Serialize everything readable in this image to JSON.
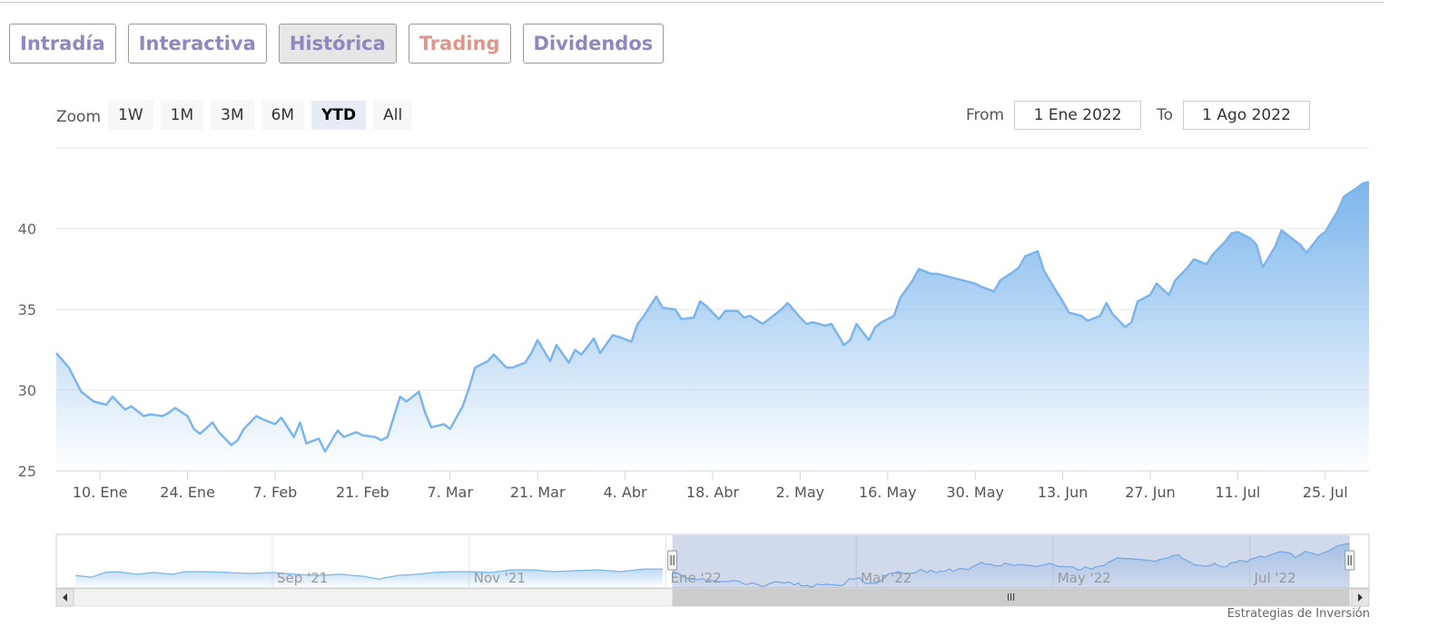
{
  "tabs": [
    "Intradía",
    "Interactiva",
    "Histórica",
    "Trading",
    "Dividendos"
  ],
  "zoom": {
    "label": "Zoom",
    "buttons": [
      "1W",
      "1M",
      "3M",
      "6M",
      "YTD",
      "All"
    ]
  },
  "range": {
    "from_label": "From",
    "from": "1 Ene 2022",
    "to_label": "To",
    "to": "1 Ago 2022"
  },
  "credit": "Estrategias de Inversión",
  "chart_data": [
    {
      "type": "area",
      "color": "#7cb5ec",
      "grid": true,
      "xlim": [
        3,
        213
      ],
      "ylim": [
        25,
        45
      ],
      "yticks": [
        25,
        30,
        35,
        40
      ],
      "xticks": [
        {
          "value": 10,
          "label": "10. Ene"
        },
        {
          "value": 24,
          "label": "24. Ene"
        },
        {
          "value": 38,
          "label": "7. Feb"
        },
        {
          "value": 52,
          "label": "21. Feb"
        },
        {
          "value": 66,
          "label": "7. Mar"
        },
        {
          "value": 80,
          "label": "21. Mar"
        },
        {
          "value": 94,
          "label": "4. Abr"
        },
        {
          "value": 108,
          "label": "18. Abr"
        },
        {
          "value": 122,
          "label": "2. May"
        },
        {
          "value": 136,
          "label": "16. May"
        },
        {
          "value": 150,
          "label": "30. May"
        },
        {
          "value": 164,
          "label": "13. Jun"
        },
        {
          "value": 178,
          "label": "27. Jun"
        },
        {
          "value": 192,
          "label": "11. Jul"
        },
        {
          "value": 206,
          "label": "25. Jul"
        }
      ],
      "x": [
        3,
        5,
        7,
        9,
        11,
        12,
        14,
        15,
        17,
        18,
        20,
        21,
        22,
        24,
        25,
        26,
        28,
        29,
        31,
        32,
        33,
        35,
        36,
        38,
        39,
        41,
        42,
        43,
        45,
        46,
        48,
        49,
        51,
        52,
        54,
        55,
        56,
        58,
        59,
        61,
        62,
        63,
        65,
        66,
        68,
        69,
        70,
        72,
        73,
        75,
        76,
        78,
        79,
        80,
        82,
        83,
        85,
        86,
        87,
        89,
        90,
        92,
        93,
        95,
        96,
        97,
        99,
        100,
        102,
        103,
        105,
        106,
        107,
        109,
        110,
        112,
        113,
        114,
        116,
        117,
        119,
        120,
        122,
        123,
        124,
        126,
        127,
        129,
        130,
        131,
        133,
        134,
        135,
        137,
        138,
        140,
        141,
        143,
        144,
        146,
        147,
        149,
        150,
        151,
        153,
        154,
        156,
        157,
        158,
        160,
        161,
        163,
        164,
        165,
        167,
        168,
        170,
        171,
        172,
        174,
        175,
        176,
        178,
        179,
        181,
        182,
        184,
        185,
        187,
        188,
        190,
        191,
        192,
        194,
        195,
        196,
        198,
        199,
        201,
        202,
        203,
        205,
        206,
        208,
        209,
        211,
        212,
        213
      ],
      "values": [
        32.3,
        31.4,
        29.9,
        29.3,
        29.1,
        29.6,
        28.8,
        29.0,
        28.4,
        28.5,
        28.4,
        28.6,
        28.9,
        28.4,
        27.6,
        27.3,
        28.0,
        27.4,
        26.6,
        26.9,
        27.6,
        28.4,
        28.2,
        27.9,
        28.3,
        27.1,
        28.0,
        26.7,
        27.0,
        26.2,
        27.5,
        27.1,
        27.4,
        27.2,
        27.1,
        26.9,
        27.1,
        29.6,
        29.3,
        29.9,
        28.6,
        27.7,
        27.9,
        27.6,
        29.0,
        30.1,
        31.4,
        31.8,
        32.2,
        31.4,
        31.4,
        31.7,
        32.3,
        33.1,
        31.8,
        32.8,
        31.7,
        32.5,
        32.2,
        33.2,
        32.3,
        33.4,
        33.3,
        33.0,
        34.1,
        34.6,
        35.8,
        35.1,
        35.0,
        34.4,
        34.5,
        35.5,
        35.2,
        34.4,
        34.9,
        34.9,
        34.5,
        34.6,
        34.1,
        34.4,
        35.0,
        35.4,
        34.5,
        34.1,
        34.2,
        34.0,
        34.1,
        32.8,
        33.1,
        34.1,
        33.1,
        33.9,
        34.2,
        34.6,
        35.7,
        36.8,
        37.5,
        37.2,
        37.2,
        37.0,
        36.9,
        36.7,
        36.6,
        36.4,
        36.1,
        36.8,
        37.3,
        37.6,
        38.3,
        38.6,
        37.4,
        36.1,
        35.5,
        34.8,
        34.6,
        34.3,
        34.6,
        35.4,
        34.7,
        33.9,
        34.2,
        35.5,
        35.9,
        36.6,
        35.9,
        36.8,
        37.6,
        38.1,
        37.8,
        38.4,
        39.2,
        39.7,
        39.8,
        39.4,
        39.0,
        37.6,
        38.9,
        39.9,
        39.3,
        39.0,
        38.5,
        39.5,
        39.8,
        41.1,
        42.0,
        42.5,
        42.8,
        42.9
      ]
    },
    {
      "type": "area",
      "color": "#7cb5ec",
      "xlim": [
        -188,
        219
      ],
      "ylim": [
        26,
        46
      ],
      "xticks": [
        {
          "value": -121,
          "label": "Sep '21"
        },
        {
          "value": -60,
          "label": "Nov '21"
        },
        {
          "value": 1,
          "label": "Ene '22"
        },
        {
          "value": 60,
          "label": "Mar '22"
        },
        {
          "value": 121,
          "label": "May '22"
        },
        {
          "value": 182,
          "label": "Jul '22"
        }
      ],
      "x": [
        -182,
        -177,
        -173,
        -169,
        -163,
        -158,
        -152,
        -148,
        -142,
        -135,
        -128,
        -121,
        -114,
        -107,
        -100,
        -93,
        -88,
        -82,
        -76,
        -71,
        -65,
        -60,
        -53,
        -47,
        -40,
        -34,
        -27,
        -20,
        -13,
        -6,
        0
      ],
      "values": [
        30.8,
        30.1,
        31.9,
        32.2,
        31.2,
        31.9,
        31.2,
        32.2,
        32.2,
        31.9,
        31.5,
        31.9,
        31.2,
        30.8,
        31.2,
        30.5,
        29.4,
        30.8,
        31.2,
        31.9,
        32.2,
        32.2,
        31.9,
        32.9,
        32.9,
        32.2,
        32.6,
        32.9,
        32.2,
        33.2,
        33.2
      ]
    }
  ]
}
